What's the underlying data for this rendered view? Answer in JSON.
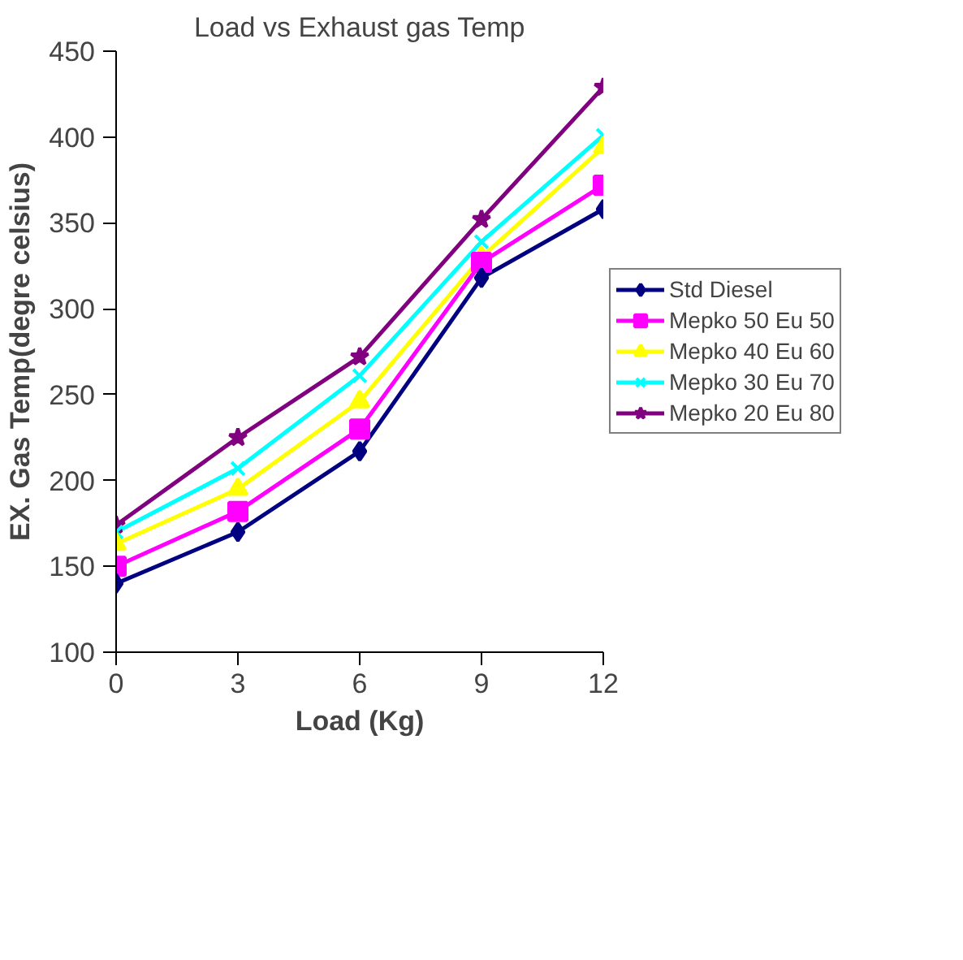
{
  "chart_data": {
    "type": "line",
    "title": "Load vs Exhaust gas Temp",
    "xlabel": "Load (Kg)",
    "ylabel": "EX. Gas Temp(degre celsius)",
    "x": [
      0,
      3,
      6,
      9,
      12
    ],
    "xlim": [
      0,
      12
    ],
    "xticks": [
      0,
      3,
      6,
      9,
      12
    ],
    "ylim": [
      100,
      450
    ],
    "yticks": [
      100,
      150,
      200,
      250,
      300,
      350,
      400,
      450
    ],
    "grid": false,
    "legend": "right",
    "line_style": "solid",
    "series": [
      {
        "name": "Std Diesel",
        "color": "#000080",
        "marker": "diamond",
        "values": [
          140,
          170,
          217,
          318,
          358
        ]
      },
      {
        "name": "Mepko 50 Eu 50",
        "color": "#ff00ff",
        "marker": "square",
        "values": [
          150,
          182,
          230,
          327,
          372
        ]
      },
      {
        "name": "Mepko 40 Eu 60",
        "color": "#ffff00",
        "marker": "triangle",
        "values": [
          163,
          195,
          246,
          330,
          394
        ]
      },
      {
        "name": "Mepko 30 Eu 70",
        "color": "#00ffff",
        "marker": "cross",
        "values": [
          170,
          207,
          261,
          339,
          401
        ]
      },
      {
        "name": "Mepko 20 Eu 80",
        "color": "#800080",
        "marker": "star",
        "values": [
          174,
          225,
          272,
          352,
          429
        ]
      }
    ]
  }
}
